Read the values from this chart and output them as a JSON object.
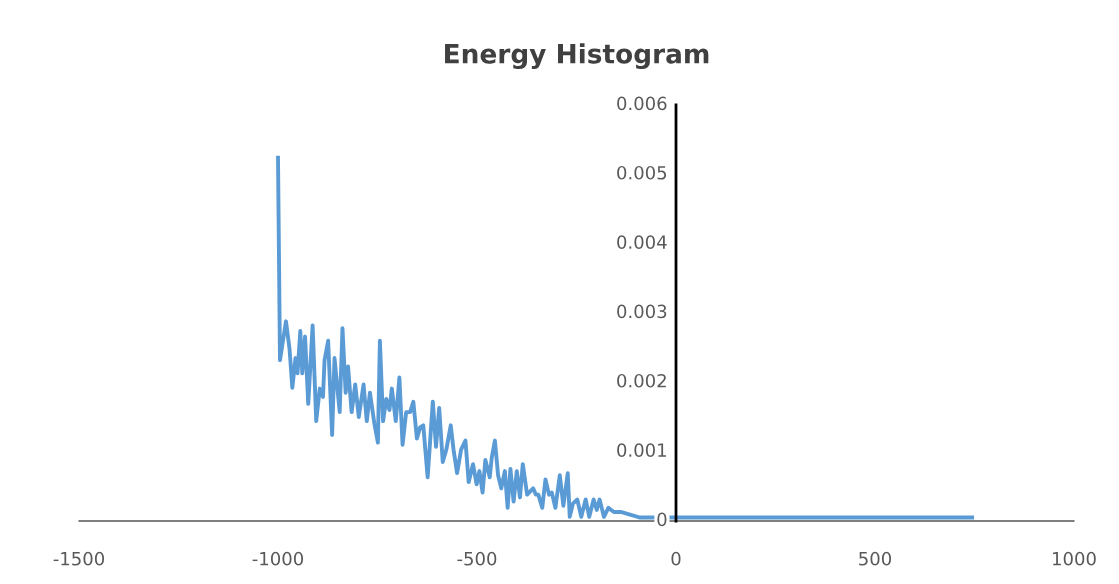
{
  "chart_data": {
    "type": "line",
    "title": "Energy Histogram",
    "xlim": [
      -1500,
      1000
    ],
    "xticks": [
      -1500,
      -1000,
      -500,
      0,
      500,
      1000
    ],
    "ylim": [
      0,
      0.006
    ],
    "yticks": [
      0,
      0.001,
      0.002,
      0.003,
      0.004,
      0.005,
      0.006
    ],
    "grid": false,
    "legend": false,
    "marker": "none",
    "line_style": "solid",
    "series": [
      {
        "color": "#5b9bd5",
        "x": [
          -1000,
          -995,
          -980,
          -971,
          -964,
          -956,
          -951,
          -944,
          -939,
          -932,
          -924,
          -913,
          -904,
          -895,
          -887,
          -883,
          -874,
          -864,
          -858,
          -845,
          -838,
          -830,
          -824,
          -815,
          -806,
          -797,
          -785,
          -777,
          -769,
          -758,
          -749,
          -744,
          -736,
          -728,
          -720,
          -714,
          -704,
          -695,
          -687,
          -678,
          -668,
          -660,
          -651,
          -643,
          -635,
          -624,
          -611,
          -603,
          -595,
          -586,
          -577,
          -566,
          -559,
          -550,
          -540,
          -529,
          -521,
          -510,
          -501,
          -494,
          -486,
          -479,
          -468,
          -463,
          -455,
          -447,
          -439,
          -430,
          -423,
          -416,
          -408,
          -400,
          -392,
          -385,
          -374,
          -359,
          -352,
          -346,
          -336,
          -328,
          -319,
          -312,
          -303,
          -292,
          -283,
          -272,
          -267,
          -259,
          -248,
          -238,
          -227,
          -218,
          -207,
          -199,
          -192,
          -181,
          -170,
          -156,
          -139,
          -90,
          0,
          744
        ],
        "values": [
          0.00524,
          0.00232,
          0.00288,
          0.00248,
          0.00192,
          0.00235,
          0.00213,
          0.00274,
          0.00213,
          0.00266,
          0.00169,
          0.00282,
          0.00144,
          0.00191,
          0.00179,
          0.00232,
          0.0026,
          0.00124,
          0.00235,
          0.00157,
          0.00278,
          0.00185,
          0.00223,
          0.00157,
          0.00197,
          0.0015,
          0.00197,
          0.00144,
          0.00185,
          0.00141,
          0.00113,
          0.0026,
          0.00144,
          0.00176,
          0.0016,
          0.00191,
          0.00144,
          0.00207,
          0.0011,
          0.00157,
          0.00157,
          0.00172,
          0.00119,
          0.00135,
          0.00138,
          0.00063,
          0.00172,
          0.00107,
          0.00163,
          0.00085,
          0.00103,
          0.00138,
          0.00103,
          0.00069,
          0.00103,
          0.00116,
          0.00056,
          0.00082,
          0.00053,
          0.00072,
          0.00041,
          0.00088,
          0.00063,
          0.00091,
          0.00116,
          0.00066,
          0.00047,
          0.00072,
          0.00019,
          0.00075,
          0.00028,
          0.00072,
          0.00034,
          0.00082,
          0.00038,
          0.00047,
          0.00038,
          0.00038,
          0.00019,
          0.0006,
          0.00038,
          0.00041,
          0.00019,
          0.00066,
          0.00022,
          0.00069,
          6e-05,
          0.00025,
          0.00031,
          6e-05,
          0.00031,
          6e-05,
          0.00031,
          0.00016,
          0.00031,
          6e-05,
          0.00019,
          0.00013,
          0.00013,
          5e-05,
          5e-05,
          5e-05
        ]
      }
    ]
  }
}
